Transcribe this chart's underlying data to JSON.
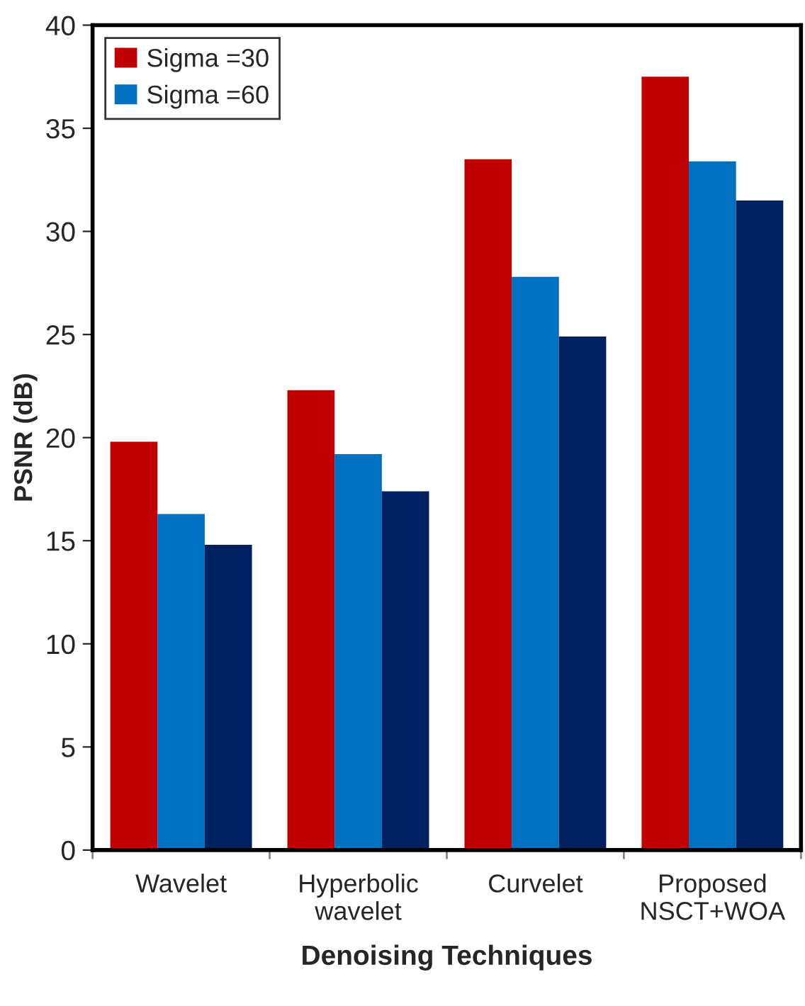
{
  "chart_data": {
    "type": "bar",
    "xlabel": "Denoising Techniques",
    "ylabel": "PSNR (dB)",
    "categories": [
      "Wavelet",
      "Hyperbolic\nwavelet",
      "Curvelet",
      "Proposed\nNSCT+WOA"
    ],
    "series": [
      {
        "name": "Sigma =30",
        "color": "#c00000",
        "values": [
          19.8,
          22.3,
          33.5,
          37.5
        ]
      },
      {
        "name": "Sigma =60",
        "color": "#0070c0",
        "values": [
          16.3,
          19.2,
          27.8,
          33.4
        ]
      },
      {
        "color": "#002060",
        "values": [
          14.8,
          17.4,
          24.9,
          31.5
        ]
      }
    ],
    "ylim": [
      0,
      40
    ],
    "yticks": [
      0,
      5,
      10,
      15,
      20,
      25,
      30,
      35,
      40
    ],
    "grid": false,
    "legend": "top left"
  }
}
